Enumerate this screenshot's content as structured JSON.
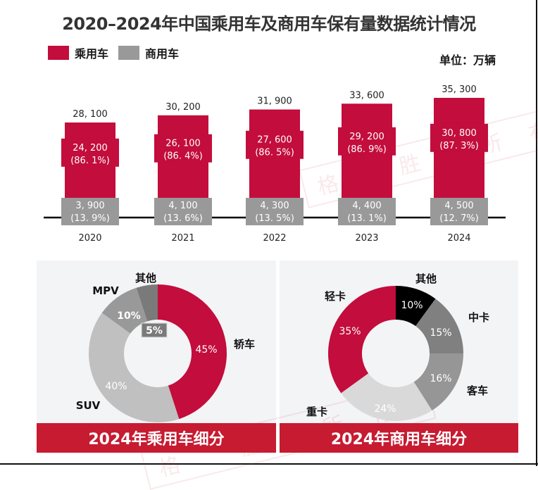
{
  "title": "2020–2024年中国乘用车及商用车保有量数据统计情况",
  "unit_label": "单位：万辆",
  "colors": {
    "passenger": "#c30d3c",
    "commercial": "#999999",
    "banner": "#c61b31",
    "panel_bg": "#f3f4f6"
  },
  "legend": [
    {
      "label": "乘用车",
      "color": "#c30d3c"
    },
    {
      "label": "商用车",
      "color": "#999999"
    }
  ],
  "watermark": "格 胜 所有",
  "chart_data": [
    {
      "type": "bar",
      "stacked": true,
      "title": "2020–2024年中国乘用车及商用车保有量数据统计情况",
      "xlabel": "",
      "ylabel": "万辆",
      "categories": [
        "2020",
        "2021",
        "2022",
        "2023",
        "2024"
      ],
      "totals": [
        28100,
        30200,
        31900,
        33600,
        35300
      ],
      "total_labels": [
        "28, 100",
        "30, 200",
        "31, 900",
        "33, 600",
        "35, 300"
      ],
      "series": [
        {
          "name": "乘用车",
          "values": [
            24200,
            26100,
            27600,
            29200,
            30800
          ],
          "value_labels": [
            "24, 200",
            "26, 100",
            "27, 600",
            "29, 200",
            "30, 800"
          ],
          "share_labels": [
            "(86. 1%)",
            "(86. 4%)",
            "(86. 5%)",
            "(86. 9%)",
            "(87. 3%)"
          ]
        },
        {
          "name": "商用车",
          "values": [
            3900,
            4100,
            4300,
            4400,
            4500
          ],
          "value_labels": [
            "3, 900",
            "4, 100",
            "4, 300",
            "4, 400",
            "4, 500"
          ],
          "share_labels": [
            "(13. 9%)",
            "(13. 6%)",
            "(13. 5%)",
            "(13. 1%)",
            "(12. 7%)"
          ]
        }
      ],
      "legend": "top-left",
      "grid": false
    },
    {
      "type": "pie",
      "donut": true,
      "title": "2024年乘用车细分",
      "slices": [
        {
          "label": "轿车",
          "value": 45,
          "value_label": "45%",
          "color": "#c30d3c"
        },
        {
          "label": "SUV",
          "value": 40,
          "value_label": "40%",
          "color": "#c0c0c0"
        },
        {
          "label": "MPV",
          "value": 10,
          "value_label": "10%",
          "color": "#999999"
        },
        {
          "label": "其他",
          "value": 5,
          "value_label": "5%",
          "color": "#7a7a7a"
        }
      ]
    },
    {
      "type": "pie",
      "donut": true,
      "title": "2024年商用车细分",
      "slices": [
        {
          "label": "其他",
          "value": 10,
          "value_label": "10%",
          "color": "#000000"
        },
        {
          "label": "中卡",
          "value": 15,
          "value_label": "15%",
          "color": "#808080"
        },
        {
          "label": "客车",
          "value": 16,
          "value_label": "16%",
          "color": "#969696"
        },
        {
          "label": "重卡",
          "value": 24,
          "value_label": "24%",
          "color": "#d9d9d9"
        },
        {
          "label": "轻卡",
          "value": 35,
          "value_label": "35%",
          "color": "#c30d3c"
        }
      ]
    }
  ]
}
